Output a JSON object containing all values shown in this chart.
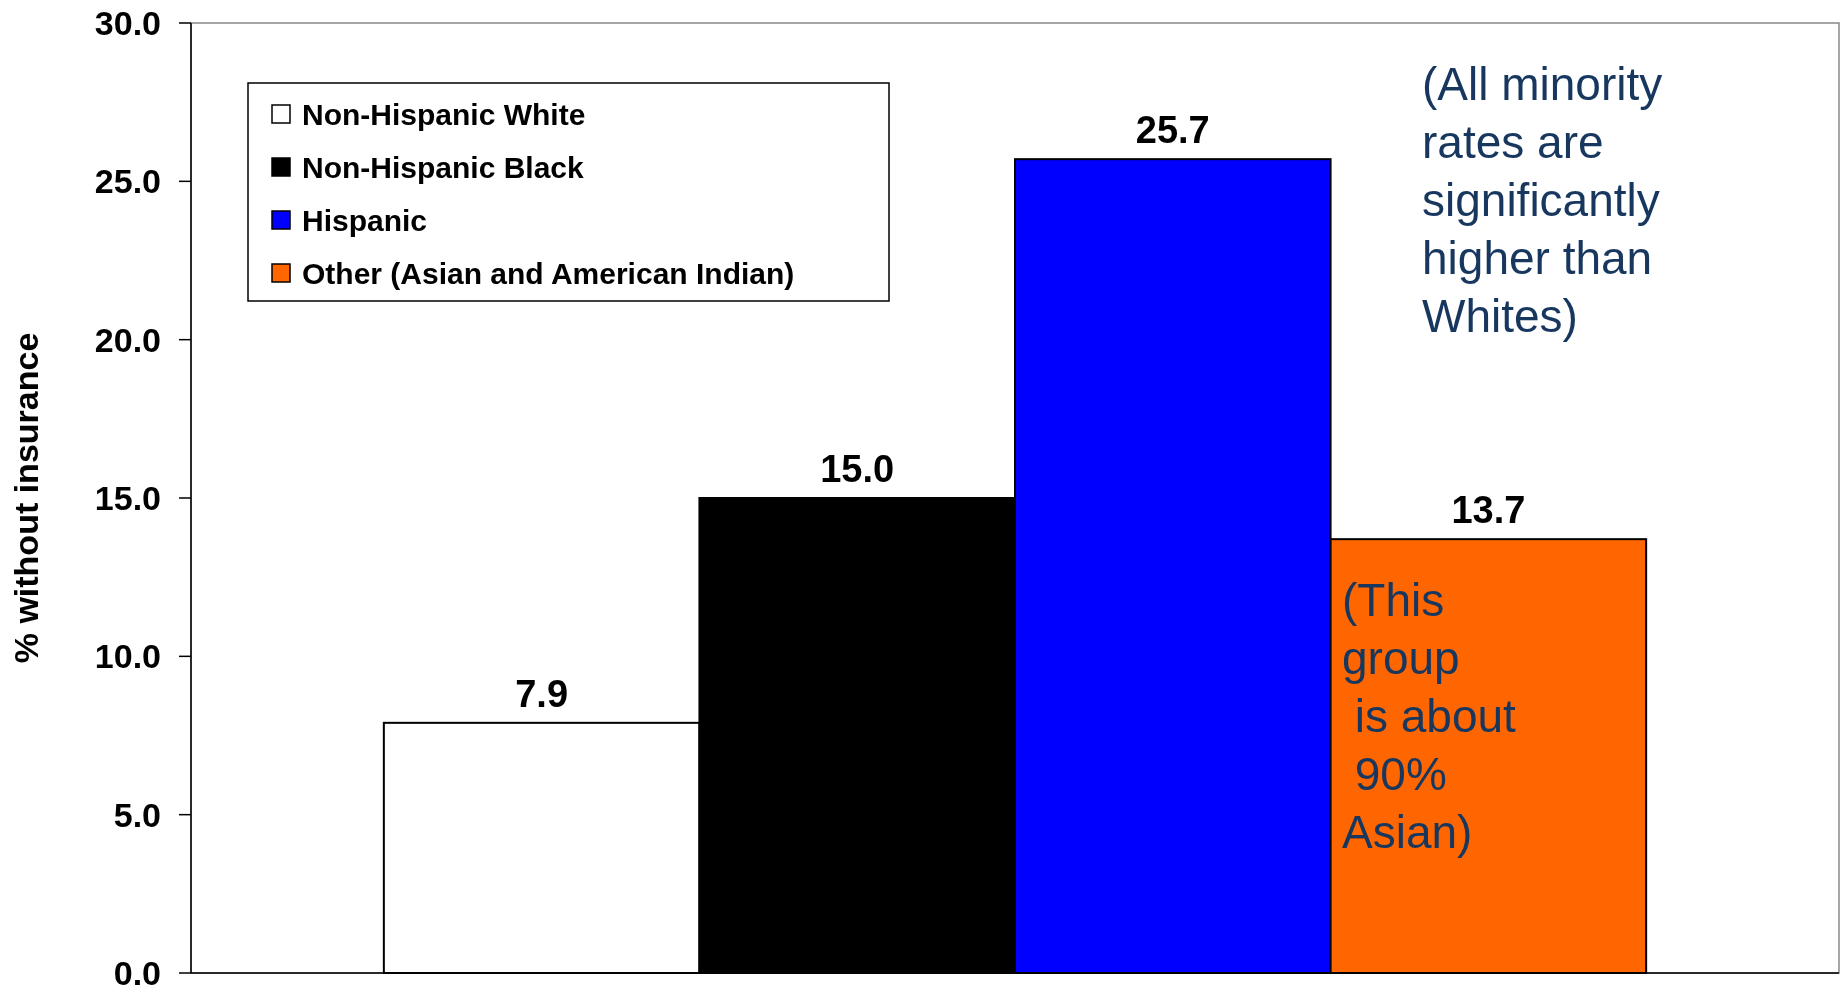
{
  "chart_data": {
    "type": "bar",
    "categories": [
      null
    ],
    "ylabel": "% without insurance",
    "series": [
      {
        "name": "Non-Hispanic White",
        "color": "#ffffff",
        "values": [
          7.9
        ],
        "value_labels": [
          "7.9"
        ]
      },
      {
        "name": "Non-Hispanic Black",
        "color": "#000000",
        "values": [
          15.0
        ],
        "value_labels": [
          "15.0"
        ]
      },
      {
        "name": "Hispanic",
        "color": "#0000ff",
        "values": [
          25.7
        ],
        "value_labels": [
          "25.7"
        ]
      },
      {
        "name": "Other (Asian and American Indian)",
        "color": "#ff6600",
        "values": [
          13.7
        ],
        "value_labels": [
          "13.7"
        ]
      }
    ],
    "ylim": [
      0,
      30
    ],
    "yticks": [
      {
        "value": 0,
        "label": "0.0"
      },
      {
        "value": 5,
        "label": "5.0"
      },
      {
        "value": 10,
        "label": "10.0"
      },
      {
        "value": 15,
        "label": "15.0"
      },
      {
        "value": 20,
        "label": "20.0"
      },
      {
        "value": 25,
        "label": "25.0"
      },
      {
        "value": 30,
        "label": "30.0"
      }
    ],
    "legend": "top left",
    "grid": false,
    "annotations": [
      "(All minority\nrates are\nsignificantly\nhigher than\nWhites)",
      "(This\ngroup\n is about\n 90%\nAsian)"
    ]
  }
}
